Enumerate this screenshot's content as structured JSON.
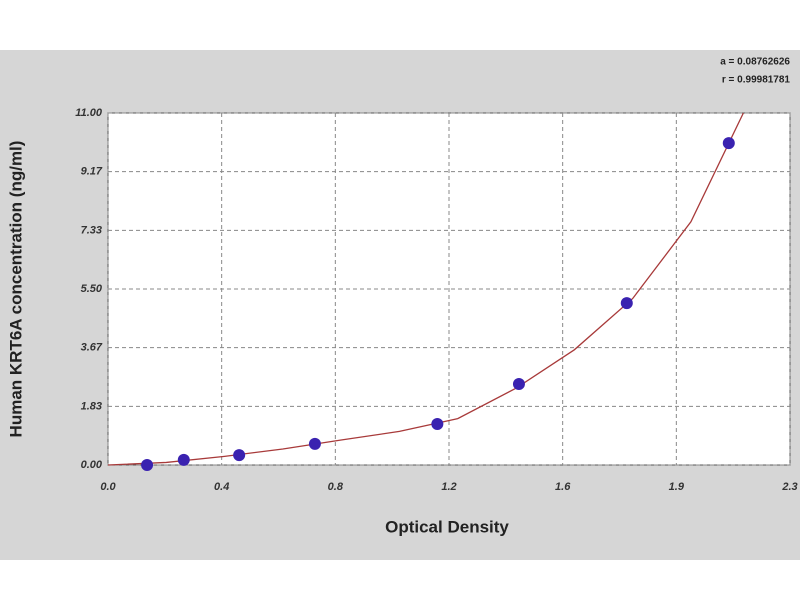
{
  "chart_data": {
    "type": "scatter",
    "xlabel": "Optical Density",
    "ylabel": "Human KRT6A concentration (ng/ml)",
    "annotations": [
      "a = 0.08762626",
      "r = 0.99981781"
    ],
    "xlim": [
      0,
      2.34
    ],
    "ylim": [
      0,
      11
    ],
    "xticks": [
      {
        "value": 0,
        "label": "0.0"
      },
      {
        "value": 0.39,
        "label": "0.4"
      },
      {
        "value": 0.78,
        "label": "0.8"
      },
      {
        "value": 1.17,
        "label": "1.2"
      },
      {
        "value": 1.56,
        "label": "1.6"
      },
      {
        "value": 1.95,
        "label": "1.9"
      },
      {
        "value": 2.34,
        "label": "2.3"
      }
    ],
    "yticks": [
      {
        "value": 0,
        "label": "0.00"
      },
      {
        "value": 1.833,
        "label": "1.83"
      },
      {
        "value": 3.667,
        "label": "3.67"
      },
      {
        "value": 5.5,
        "label": "5.50"
      },
      {
        "value": 7.333,
        "label": "7.33"
      },
      {
        "value": 9.167,
        "label": "9.17"
      },
      {
        "value": 11,
        "label": "11.00"
      }
    ],
    "grid": true,
    "points": {
      "color": "#3a22b0",
      "x": [
        0.134,
        0.26,
        0.45,
        0.71,
        1.13,
        1.41,
        1.78,
        2.13
      ],
      "values": [
        0.0,
        0.16,
        0.31,
        0.66,
        1.28,
        2.53,
        5.06,
        10.06
      ]
    },
    "curve": {
      "color": "#a83a3a",
      "x": [
        0,
        0.2,
        0.4,
        0.6,
        0.8,
        1.0,
        1.2,
        1.4,
        1.6,
        1.8,
        2.0,
        2.18
      ],
      "values": [
        0,
        0.08,
        0.27,
        0.5,
        0.78,
        1.05,
        1.45,
        2.4,
        3.6,
        5.2,
        7.6,
        11.0
      ]
    }
  }
}
